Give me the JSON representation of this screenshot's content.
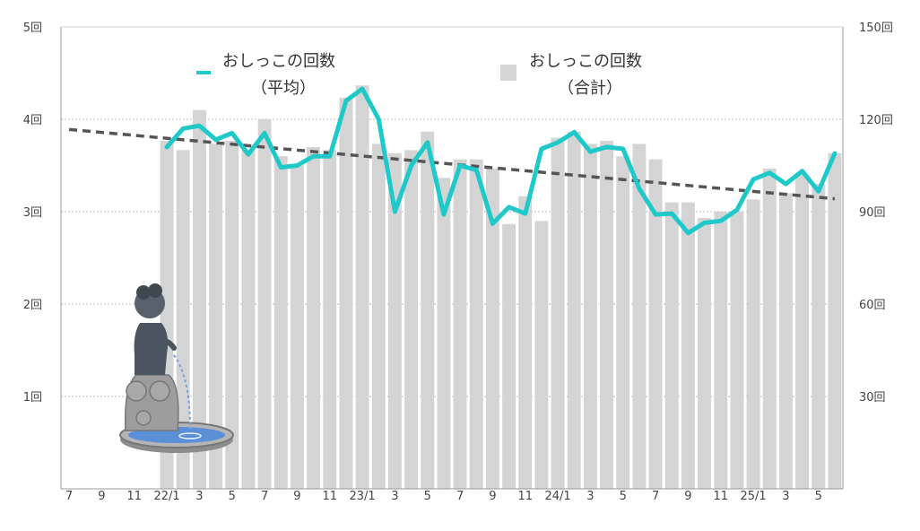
{
  "colors": {
    "bar": "#d4d4d4",
    "line": "#1fc9c9",
    "trend": "#555555",
    "grid": "#bbbbbb",
    "axis": "#999999"
  },
  "legend": [
    {
      "key": "line",
      "label": "おしっこの回数",
      "sub": "（平均）"
    },
    {
      "key": "bar",
      "label": "おしっこの回数",
      "sub": "（合計）"
    }
  ],
  "chart_data": {
    "type": "bar",
    "title": "",
    "x_labels": [
      "7",
      "9",
      "11",
      "22/1",
      "3",
      "5",
      "7",
      "9",
      "11",
      "23/1",
      "3",
      "5",
      "7",
      "9",
      "11",
      "24/1",
      "3",
      "5",
      "7",
      "9",
      "11",
      "25/1",
      "3",
      "5"
    ],
    "left_axis": {
      "ticks": [
        "1回",
        "2回",
        "3回",
        "4回",
        "5回"
      ],
      "ylim": [
        0,
        5
      ]
    },
    "right_axis": {
      "ticks": [
        "30回",
        "60回",
        "90回",
        "120回",
        "150回"
      ],
      "ylim": [
        0,
        150
      ]
    },
    "grid": true,
    "series": [
      {
        "name": "おしっこの回数（合計）",
        "type": "bar",
        "axis": "right",
        "x_index_start": 6,
        "values": [
          113,
          110,
          123,
          112,
          113,
          110,
          120,
          108,
          105,
          111,
          110,
          127,
          131,
          112,
          109,
          110,
          116,
          101,
          107,
          107,
          104,
          86,
          95,
          87,
          114,
          116,
          112,
          113,
          108,
          112,
          107,
          93,
          93,
          88,
          90,
          90,
          94,
          104,
          96,
          102,
          99,
          109
        ]
      },
      {
        "name": "おしっこの回数（平均）",
        "type": "line",
        "axis": "left",
        "x_index_start": 6,
        "values": [
          3.7,
          3.9,
          3.93,
          3.78,
          3.85,
          3.62,
          3.85,
          3.48,
          3.5,
          3.6,
          3.6,
          4.2,
          4.33,
          4.0,
          3.0,
          3.5,
          3.75,
          2.97,
          3.5,
          3.45,
          2.87,
          3.05,
          2.98,
          3.68,
          3.75,
          3.86,
          3.65,
          3.7,
          3.68,
          3.25,
          2.97,
          2.98,
          2.77,
          2.88,
          2.9,
          3.02,
          3.35,
          3.42,
          3.3,
          3.44,
          3.22,
          3.63
        ]
      },
      {
        "name": "trend",
        "type": "trend",
        "axis": "left",
        "from": {
          "x_index": 0,
          "value": 3.89
        },
        "to": {
          "x_index": 47,
          "value": 3.14
        }
      }
    ]
  }
}
